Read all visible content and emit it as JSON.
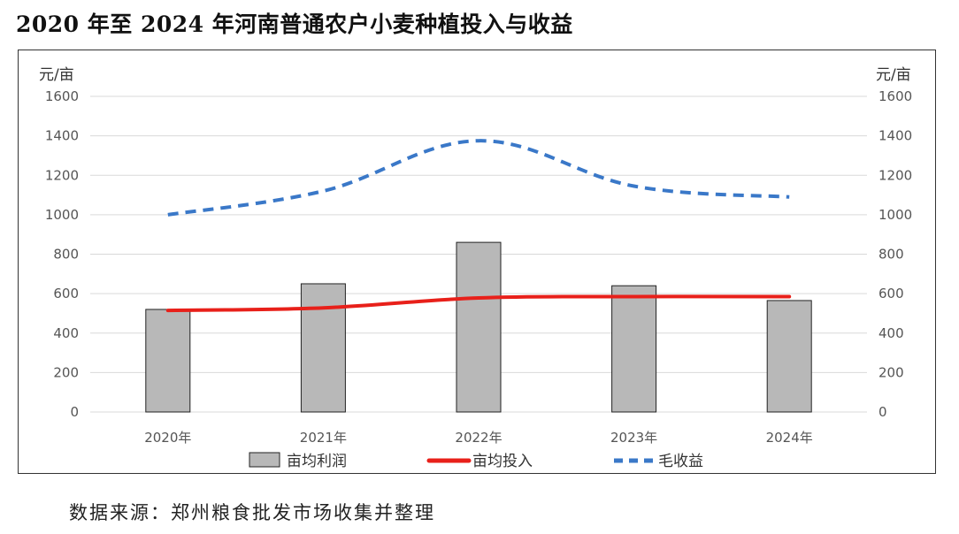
{
  "title": "2020 年至 2024 年河南普通农户小麦种植投入与收益",
  "source": "数据来源：郑州粮食批发市场收集并整理",
  "colors": {
    "bar_fill": "#b8b8b8",
    "bar_stroke": "#222222",
    "line_invest": "#e8201a",
    "line_revenue": "#3a78c8",
    "grid": "#d9d9d9"
  },
  "chart_data": {
    "type": "bar",
    "categories": [
      "2020年",
      "2021年",
      "2022年",
      "2023年",
      "2024年"
    ],
    "ylabel_left": "元/亩",
    "ylabel_right": "元/亩",
    "ylim": [
      0,
      1600
    ],
    "yticks": [
      "0",
      "200",
      "400",
      "600",
      "800",
      "1000",
      "1200",
      "1400",
      "1600"
    ],
    "grid": true,
    "legend_position": "bottom",
    "series": [
      {
        "name": "亩均利润",
        "type": "bar",
        "values": [
          520,
          650,
          860,
          640,
          565
        ]
      },
      {
        "name": "亩均投入",
        "type": "line",
        "style": "solid",
        "values": [
          515,
          528,
          578,
          585,
          585
        ]
      },
      {
        "name": "毛收益",
        "type": "line",
        "style": "dashed",
        "values": [
          1000,
          1120,
          1375,
          1145,
          1090
        ]
      }
    ]
  }
}
